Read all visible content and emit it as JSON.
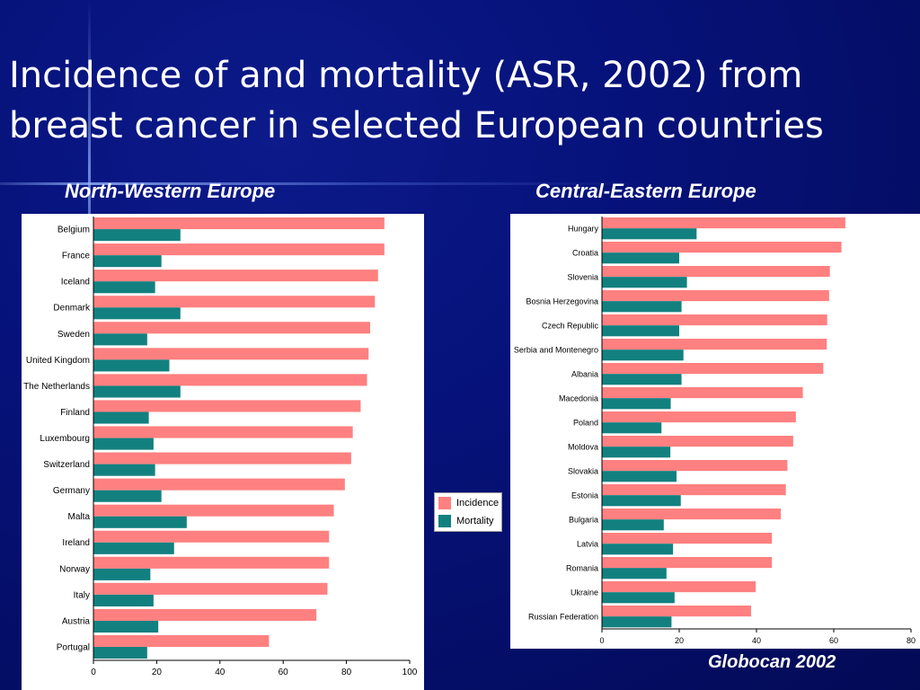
{
  "slide": {
    "title": "Incidence of and mortality (ASR, 2002) from breast cancer in selected European countries",
    "source": "Globocan 2002"
  },
  "legend": {
    "incidence_label": "Incidence",
    "mortality_label": "Mortality"
  },
  "colors": {
    "incidence": "#ff8080",
    "mortality": "#138080",
    "background": "#06127a"
  },
  "chart_data": [
    {
      "type": "bar",
      "orientation": "horizontal",
      "title": "North-Western Europe",
      "categories": [
        "Belgium",
        "France",
        "Iceland",
        "Denmark",
        "Sweden",
        "United Kingdom",
        "The Netherlands",
        "Finland",
        "Luxembourg",
        "Switzerland",
        "Germany",
        "Malta",
        "Ireland",
        "Norway",
        "Italy",
        "Austria",
        "Portugal"
      ],
      "series": [
        {
          "name": "Incidence",
          "values": [
            92,
            92,
            90,
            89,
            87.5,
            87,
            86.5,
            84.5,
            82,
            81.5,
            79.5,
            76,
            74.5,
            74.5,
            74,
            70.5,
            55.5
          ]
        },
        {
          "name": "Mortality",
          "values": [
            27.5,
            21.5,
            19.5,
            27.5,
            17,
            24,
            27.5,
            17.5,
            19,
            19.5,
            21.5,
            29.5,
            25.5,
            18,
            19,
            20.5,
            17
          ]
        }
      ],
      "xlim": [
        0,
        100
      ],
      "xticks": [
        0,
        20,
        40,
        60,
        80,
        100
      ],
      "grid": false
    },
    {
      "type": "bar",
      "orientation": "horizontal",
      "title": "Central-Eastern Europe",
      "categories": [
        "Hungary",
        "Croatia",
        "Slovenia",
        "Bosnia Herzegovina",
        "Czech Republic",
        "Serbia and Montenegro",
        "Albania",
        "Macedonia",
        "Poland",
        "Moldova",
        "Slovakia",
        "Estonia",
        "Bulgaria",
        "Latvia",
        "Romania",
        "Ukraine",
        "Russian Federation"
      ],
      "series": [
        {
          "name": "Incidence",
          "values": [
            63,
            62,
            59,
            58.8,
            58.3,
            58.2,
            57.3,
            52,
            50.2,
            49.5,
            48,
            47.6,
            46.3,
            44,
            44,
            39.8,
            38.6
          ]
        },
        {
          "name": "Mortality",
          "values": [
            24.5,
            20,
            22,
            20.6,
            20,
            21.1,
            20.6,
            17.8,
            15.4,
            17.7,
            19.3,
            20.4,
            16,
            18.4,
            16.7,
            18.8,
            18
          ]
        }
      ],
      "xlim": [
        0,
        80
      ],
      "xticks": [
        0,
        20,
        40,
        60,
        80
      ],
      "grid": false
    }
  ]
}
